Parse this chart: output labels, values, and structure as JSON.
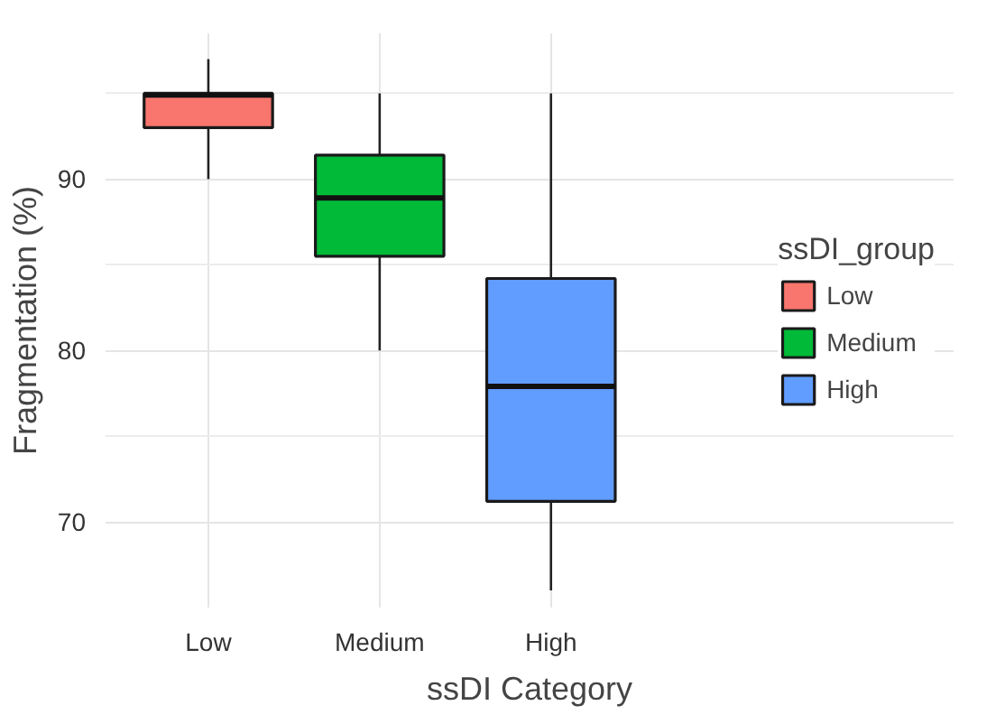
{
  "chart_data": {
    "type": "box",
    "xlabel": "ssDI Category",
    "ylabel": "Fragmentation (%)",
    "legend_title": "ssDI_group",
    "categories": [
      "Low",
      "Medium",
      "High"
    ],
    "series": [
      {
        "name": "Low",
        "color": "#f8766d",
        "boxes": [
          {
            "low": 90,
            "q1": 93,
            "median": 94.9,
            "q3": 95,
            "high": 97
          },
          null,
          null
        ]
      },
      {
        "name": "Medium",
        "color": "#00ba38",
        "boxes": [
          null,
          {
            "low": 80,
            "q1": 85.5,
            "median": 88.9,
            "q3": 91.4,
            "high": 95
          },
          null
        ]
      },
      {
        "name": "High",
        "color": "#619cff",
        "boxes": [
          null,
          null,
          {
            "low": 66,
            "q1": 71.2,
            "median": 77.9,
            "q3": 84.2,
            "high": 95
          }
        ]
      }
    ],
    "ylim": [
      65,
      98.5
    ],
    "yticks": [
      70,
      80,
      90
    ],
    "grid": true,
    "legend": "right"
  }
}
